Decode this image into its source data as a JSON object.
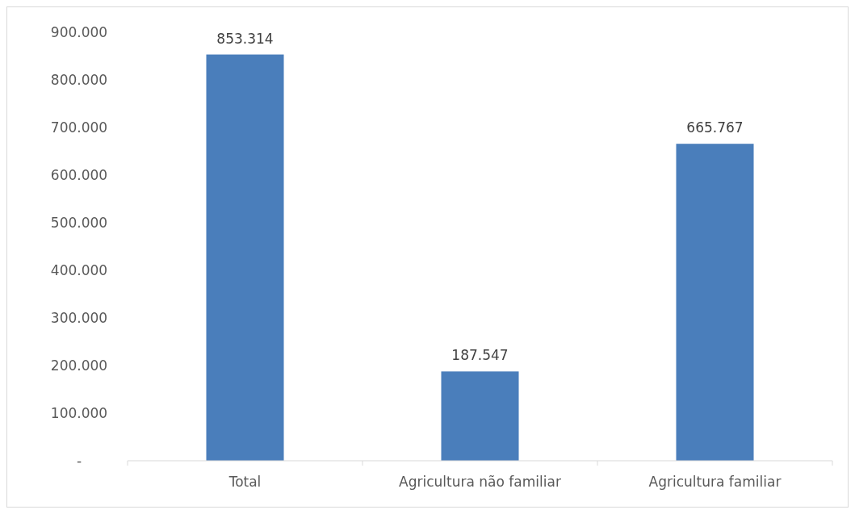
{
  "chart_data": {
    "type": "bar",
    "categories": [
      "Total",
      "Agricultura não familiar",
      "Agricultura familiar"
    ],
    "values": [
      853314,
      187547,
      665767
    ],
    "color": "#4a7ebb",
    "value_labels": [
      "853.314",
      "187.547",
      "665.767"
    ],
    "ylim": [
      0,
      900000
    ],
    "yticks": [
      {
        "value": 0,
        "label": "-"
      },
      {
        "value": 100000,
        "label": "100.000"
      },
      {
        "value": 200000,
        "label": "200.000"
      },
      {
        "value": 300000,
        "label": "300.000"
      },
      {
        "value": 400000,
        "label": "400.000"
      },
      {
        "value": 500000,
        "label": "500.000"
      },
      {
        "value": 600000,
        "label": "600.000"
      },
      {
        "value": 700000,
        "label": "700.000"
      },
      {
        "value": 800000,
        "label": "800.000"
      },
      {
        "value": 900000,
        "label": "900.000"
      }
    ],
    "grid": false
  }
}
